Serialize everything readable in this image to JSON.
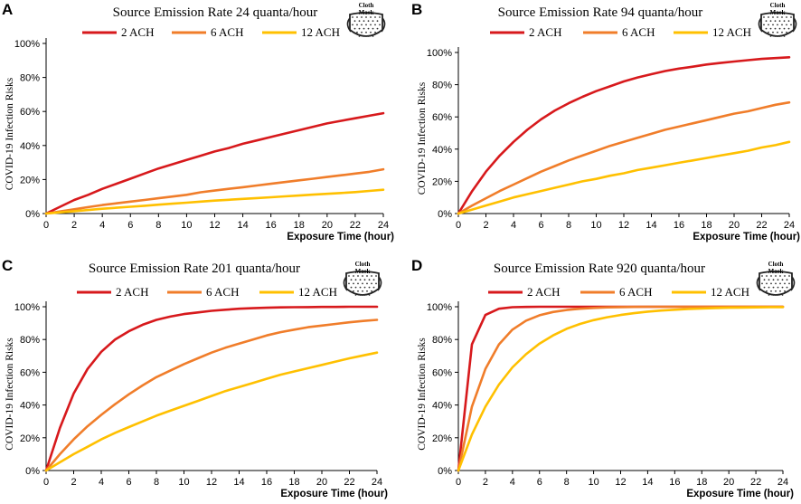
{
  "colors": {
    "series_2ach": "#D7191C",
    "series_6ach": "#F07D2A",
    "series_12ach": "#FFC000",
    "axis": "#000000"
  },
  "mask_icon": {
    "name": "cloth-mask-icon",
    "label_line1": "Cloth",
    "label_line2": "Mask"
  },
  "chart_data": [
    {
      "panel": "A",
      "type": "line",
      "title": "Source Emission Rate 24 quanta/hour",
      "xlabel": "Exposure Time (hour)",
      "ylabel": "COVID-19 Infection Risks",
      "xlim": [
        0,
        24
      ],
      "ylim": [
        0,
        100
      ],
      "x_ticks": [
        "0",
        "2",
        "4",
        "6",
        "8",
        "10",
        "12",
        "14",
        "16",
        "18",
        "20",
        "22",
        "24"
      ],
      "y_ticks": [
        "0%",
        "20%",
        "40%",
        "60%",
        "80%",
        "100%"
      ],
      "legend_position": "top",
      "x": [
        0,
        1,
        2,
        3,
        4,
        5,
        6,
        7,
        8,
        9,
        10,
        11,
        12,
        13,
        14,
        15,
        16,
        17,
        18,
        19,
        20,
        21,
        22,
        23,
        24
      ],
      "series": [
        {
          "name": "2 ACH",
          "color_key": "series_2ach",
          "values": [
            0,
            4,
            8,
            11,
            14.5,
            17.5,
            20.5,
            23.5,
            26.5,
            29,
            31.5,
            34,
            36.5,
            38.5,
            41,
            43,
            45,
            47,
            49,
            51,
            53,
            54.5,
            56,
            57.5,
            59
          ]
        },
        {
          "name": "6 ACH",
          "color_key": "series_6ach",
          "values": [
            0,
            1.2,
            2.5,
            3.8,
            5,
            6,
            7,
            8,
            9,
            10,
            11,
            12.5,
            13.5,
            14.5,
            15.5,
            16.5,
            17.5,
            18.5,
            19.5,
            20.5,
            21.5,
            22.5,
            23.5,
            24.5,
            26
          ]
        },
        {
          "name": "12 ACH",
          "color_key": "series_12ach",
          "values": [
            0,
            0.7,
            1.4,
            2.1,
            2.8,
            3.4,
            4,
            4.6,
            5.2,
            5.8,
            6.4,
            7,
            7.6,
            8.1,
            8.6,
            9.1,
            9.6,
            10.1,
            10.6,
            11.1,
            11.6,
            12.1,
            12.6,
            13.3,
            14
          ]
        }
      ]
    },
    {
      "panel": "B",
      "type": "line",
      "title": "Source Emission Rate 94 quanta/hour",
      "xlabel": "Exposure Time (hour)",
      "ylabel": "COVID-19 Infection Risks",
      "xlim": [
        0,
        24
      ],
      "ylim": [
        0,
        100
      ],
      "x_ticks": [
        "0",
        "2",
        "4",
        "6",
        "8",
        "10",
        "12",
        "14",
        "16",
        "18",
        "20",
        "22",
        "24"
      ],
      "y_ticks": [
        "0%",
        "20%",
        "40%",
        "60%",
        "80%",
        "100%"
      ],
      "legend_position": "top",
      "x": [
        0,
        1,
        2,
        3,
        4,
        5,
        6,
        7,
        8,
        9,
        10,
        11,
        12,
        13,
        14,
        15,
        16,
        17,
        18,
        19,
        20,
        21,
        22,
        23,
        24
      ],
      "series": [
        {
          "name": "2 ACH",
          "color_key": "series_2ach",
          "values": [
            0,
            14,
            26,
            36,
            44.5,
            52,
            58.5,
            64,
            68.5,
            72.5,
            76,
            79,
            82,
            84.5,
            86.5,
            88.5,
            90,
            91.2,
            92.5,
            93.5,
            94.4,
            95.2,
            96,
            96.5,
            97
          ]
        },
        {
          "name": "6 ACH",
          "color_key": "series_6ach",
          "values": [
            0,
            5,
            9.5,
            14,
            18,
            22,
            26,
            29.5,
            33,
            36,
            39,
            42,
            44.5,
            47,
            49.5,
            52,
            54,
            56,
            58,
            60,
            62,
            63.5,
            65.5,
            67.5,
            69
          ]
        },
        {
          "name": "12 ACH",
          "color_key": "series_12ach",
          "values": [
            0,
            2.5,
            5,
            7.5,
            10,
            12,
            14,
            16,
            18,
            20,
            21.5,
            23.5,
            25,
            27,
            28.5,
            30,
            31.5,
            33,
            34.5,
            36,
            37.5,
            39,
            41,
            42.5,
            44.5
          ]
        }
      ]
    },
    {
      "panel": "C",
      "type": "line",
      "title": "Source Emission Rate 201 quanta/hour",
      "xlabel": "Exposure Time (hour)",
      "ylabel": "COVID-19 Infection Risks",
      "xlim": [
        0,
        24
      ],
      "ylim": [
        0,
        100
      ],
      "x_ticks": [
        "0",
        "2",
        "4",
        "6",
        "8",
        "10",
        "12",
        "14",
        "16",
        "18",
        "20",
        "22",
        "24"
      ],
      "y_ticks": [
        "0%",
        "20%",
        "40%",
        "60%",
        "80%",
        "100%"
      ],
      "legend_position": "top",
      "x": [
        0,
        1,
        2,
        3,
        4,
        5,
        6,
        7,
        8,
        9,
        10,
        11,
        12,
        13,
        14,
        15,
        16,
        17,
        18,
        19,
        20,
        21,
        22,
        23,
        24
      ],
      "series": [
        {
          "name": "2 ACH",
          "color_key": "series_2ach",
          "values": [
            0,
            26,
            47,
            62,
            72.5,
            80,
            85,
            89,
            92,
            94,
            95.5,
            96.5,
            97.5,
            98.2,
            98.8,
            99.1,
            99.4,
            99.6,
            99.7,
            99.8,
            99.9,
            99.9,
            100,
            100,
            100
          ]
        },
        {
          "name": "6 ACH",
          "color_key": "series_6ach",
          "values": [
            0,
            10,
            19,
            27,
            34,
            40.5,
            46.5,
            52,
            57,
            61,
            65,
            68.5,
            72,
            75,
            77.5,
            80,
            82.5,
            84.5,
            86,
            87.5,
            88.5,
            89.5,
            90.5,
            91.3,
            92
          ]
        },
        {
          "name": "12 ACH",
          "color_key": "series_12ach",
          "values": [
            0,
            5,
            10,
            14.5,
            19,
            23,
            26.5,
            30,
            33.5,
            36.5,
            39.5,
            42.5,
            45.5,
            48.5,
            51,
            53.5,
            56,
            58.5,
            60.5,
            62.5,
            64.5,
            66.5,
            68.5,
            70.3,
            72
          ]
        }
      ]
    },
    {
      "panel": "D",
      "type": "line",
      "title": "Source Emission Rate 920 quanta/hour",
      "xlabel": "Exposure Time (hour)",
      "ylabel": "COVID-19 Infection Risks",
      "xlim": [
        0,
        24
      ],
      "ylim": [
        0,
        100
      ],
      "x_ticks": [
        "0",
        "2",
        "4",
        "6",
        "8",
        "10",
        "12",
        "14",
        "16",
        "18",
        "20",
        "22",
        "24"
      ],
      "y_ticks": [
        "0%",
        "20%",
        "40%",
        "60%",
        "80%",
        "100%"
      ],
      "legend_position": "top",
      "x": [
        0,
        1,
        2,
        3,
        4,
        5,
        6,
        7,
        8,
        9,
        10,
        11,
        12,
        13,
        14,
        15,
        16,
        17,
        18,
        19,
        20,
        21,
        22,
        23,
        24
      ],
      "series": [
        {
          "name": "2 ACH",
          "color_key": "series_2ach",
          "values": [
            0,
            77,
            95,
            98.8,
            99.7,
            99.9,
            100,
            100,
            100,
            100,
            100,
            100,
            100,
            100,
            100,
            100,
            100,
            100,
            100,
            100,
            100,
            100,
            100,
            100,
            100
          ]
        },
        {
          "name": "6 ACH",
          "color_key": "series_6ach",
          "values": [
            0,
            39,
            62,
            77,
            86,
            91.5,
            94.8,
            96.8,
            98,
            98.8,
            99.3,
            99.6,
            99.8,
            99.9,
            100,
            100,
            100,
            100,
            100,
            100,
            100,
            100,
            100,
            100,
            100
          ]
        },
        {
          "name": "12 ACH",
          "color_key": "series_12ach",
          "values": [
            0,
            22,
            39,
            52.5,
            63,
            71,
            77.5,
            82.5,
            86.5,
            89.5,
            91.8,
            93.6,
            95,
            96.1,
            97,
            97.7,
            98.2,
            98.6,
            98.9,
            99.2,
            99.4,
            99.5,
            99.6,
            99.7,
            99.8
          ]
        }
      ]
    }
  ]
}
